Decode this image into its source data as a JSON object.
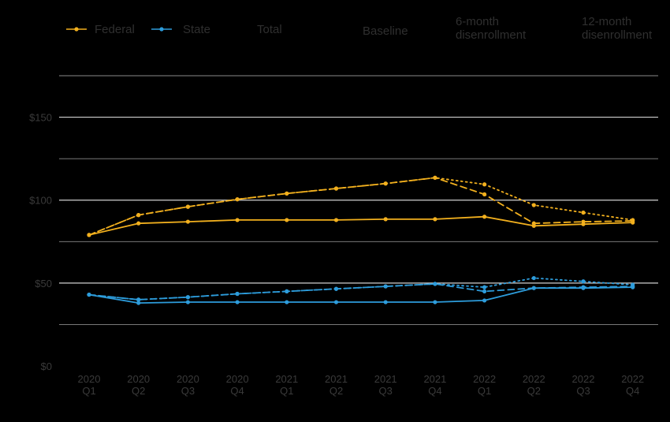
{
  "chart_data": {
    "type": "line",
    "categories": [
      [
        "2020",
        "Q1"
      ],
      [
        "2020",
        "Q2"
      ],
      [
        "2020",
        "Q3"
      ],
      [
        "2020",
        "Q4"
      ],
      [
        "2021",
        "Q1"
      ],
      [
        "2021",
        "Q2"
      ],
      [
        "2021",
        "Q3"
      ],
      [
        "2021",
        "Q4"
      ],
      [
        "2022",
        "Q1"
      ],
      [
        "2022",
        "Q2"
      ],
      [
        "2022",
        "Q3"
      ],
      [
        "2022",
        "Q4"
      ]
    ],
    "y_ticks": [
      "$0",
      "$50",
      "$100",
      "$150"
    ],
    "ylim": [
      0,
      175
    ],
    "grid": true,
    "legend_position": "top",
    "legend": {
      "colors": [
        {
          "name": "Federal",
          "color": "#F2B01E"
        },
        {
          "name": "State",
          "color": "#2D9CDB"
        },
        {
          "name": "Total",
          "color": null
        }
      ],
      "scenarios": [
        {
          "name": "Baseline",
          "dash": "solid"
        },
        {
          "name": "6-month disenrollment",
          "lines": [
            "6-month",
            "disenrollment"
          ],
          "dash": "dashed"
        },
        {
          "name": "12-month disenrollment",
          "lines": [
            "12-month",
            "disenrollment"
          ],
          "dash": "dotted"
        }
      ]
    },
    "series": [
      {
        "name": "Federal",
        "scenario": "Baseline",
        "color": "#F2B01E",
        "dash": "solid",
        "values": [
          79,
          86,
          87,
          88,
          88,
          88,
          88.5,
          88.5,
          90,
          84.5,
          85.5,
          86.5
        ]
      },
      {
        "name": "Federal",
        "scenario": "6-month disenrollment",
        "color": "#F2B01E",
        "dash": "dashed",
        "values": [
          79,
          91,
          96,
          100.5,
          104,
          107,
          110,
          113.5,
          103.5,
          86,
          87,
          87.5
        ]
      },
      {
        "name": "Federal",
        "scenario": "12-month disenrollment",
        "color": "#F2B01E",
        "dash": "dotted",
        "values": [
          79,
          91,
          96,
          100.5,
          104,
          107,
          110,
          113.5,
          109.5,
          97,
          92.5,
          88
        ]
      },
      {
        "name": "State",
        "scenario": "Baseline",
        "color": "#2D9CDB",
        "dash": "solid",
        "values": [
          43,
          38,
          38.5,
          38.5,
          38.5,
          38.5,
          38.5,
          38.5,
          39.5,
          47,
          47,
          47.5
        ]
      },
      {
        "name": "State",
        "scenario": "6-month disenrollment",
        "color": "#2D9CDB",
        "dash": "dashed",
        "values": [
          43,
          40,
          41.5,
          43.5,
          45,
          46.5,
          48,
          49.5,
          45,
          47,
          47.5,
          48
        ]
      },
      {
        "name": "State",
        "scenario": "12-month disenrollment",
        "color": "#2D9CDB",
        "dash": "dotted",
        "values": [
          43,
          40,
          41.5,
          43.5,
          45,
          46.5,
          48,
          49.5,
          47.5,
          53,
          51,
          49
        ]
      }
    ]
  }
}
